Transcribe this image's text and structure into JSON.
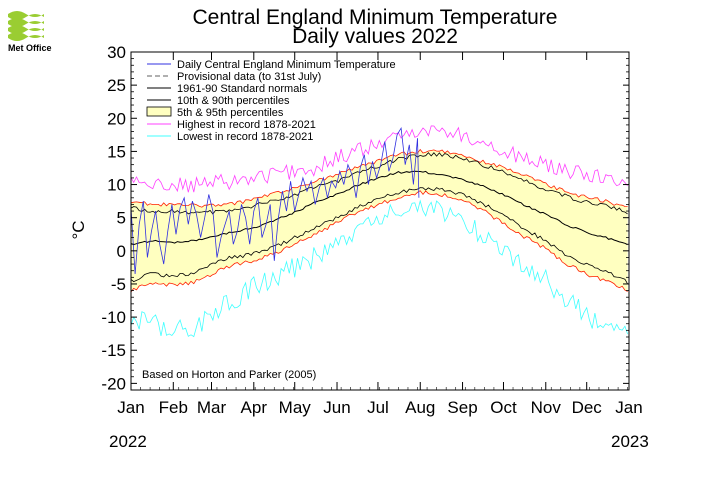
{
  "header": {
    "logo_text": "Met Office",
    "title_line1": "Central England Minimum Temperature",
    "title_line2": "Daily values 2022"
  },
  "axis": {
    "ylabel": "°C",
    "year_start": "2022",
    "year_end": "2023"
  },
  "legend": [
    {
      "label": "Daily Central England Minimum Temperature",
      "color": "#3030e0",
      "kind": "line"
    },
    {
      "label": "Provisional data (to 31st July)",
      "color": "#606060",
      "kind": "dash"
    },
    {
      "label": "1961-90 Standard normals",
      "color": "#000000",
      "kind": "line"
    },
    {
      "label": "10th & 90th percentiles",
      "color": "#000000",
      "kind": "line"
    },
    {
      "label": "5th & 95th percentiles",
      "color": "#ffffc0",
      "kind": "box"
    },
    {
      "label": "Highest in record 1878-2021",
      "color": "#ff40ff",
      "kind": "line"
    },
    {
      "label": "Lowest in record 1878-2021",
      "color": "#40ffff",
      "kind": "line"
    }
  ],
  "note": "Based on Horton and Parker (2005)",
  "colors": {
    "daily": "#3030e0",
    "normal": "#000000",
    "p10_90": "#000000",
    "p5_95": "#ff2000",
    "band_fill": "#ffffc0",
    "highest": "#ff40ff",
    "lowest": "#40ffff"
  },
  "chart_data": {
    "type": "line",
    "title": "Central England Minimum Temperature",
    "subtitle": "Daily values 2022",
    "xlabel": "",
    "ylabel": "°C",
    "x_ticks": [
      "Jan",
      "Feb",
      "Mar",
      "Apr",
      "May",
      "Jun",
      "Jul",
      "Aug",
      "Sep",
      "Oct",
      "Nov",
      "Dec",
      "Jan"
    ],
    "y_ticks": [
      30,
      25,
      20,
      15,
      10,
      5,
      0,
      -5,
      -10,
      -15,
      -20
    ],
    "ylim": [
      -21,
      30
    ],
    "xlim": [
      1,
      366
    ],
    "grid": false,
    "legend_position": "top-left",
    "normals_days": [
      1,
      15,
      32,
      46,
      60,
      74,
      91,
      105,
      121,
      135,
      152,
      166,
      182,
      196,
      213,
      227,
      244,
      258,
      274,
      288,
      305,
      319,
      335,
      349,
      366
    ],
    "series": [
      {
        "name": "Highest in record 1878-2021",
        "values": [
          10.5,
          10.0,
          10.0,
          9.8,
          10.2,
          10.5,
          11.0,
          11.5,
          12.0,
          12.5,
          14.0,
          15.0,
          16.0,
          17.0,
          18.5,
          18.0,
          17.5,
          16.5,
          15.0,
          14.0,
          13.0,
          12.0,
          11.5,
          11.0,
          10.0
        ]
      },
      {
        "name": "95th percentile",
        "values": [
          7.5,
          7.0,
          7.0,
          6.8,
          6.8,
          7.0,
          7.8,
          8.5,
          9.5,
          10.5,
          11.5,
          12.5,
          13.5,
          14.5,
          15.0,
          15.0,
          14.5,
          13.5,
          12.5,
          11.5,
          10.0,
          9.0,
          8.0,
          7.5,
          6.5
        ]
      },
      {
        "name": "90th percentile",
        "values": [
          6.5,
          6.0,
          6.0,
          5.8,
          5.8,
          6.0,
          6.8,
          7.5,
          8.5,
          9.5,
          10.5,
          11.8,
          12.8,
          13.8,
          14.5,
          14.5,
          14.0,
          13.0,
          12.0,
          10.8,
          9.3,
          8.3,
          7.3,
          6.8,
          5.8
        ]
      },
      {
        "name": "1961-90 Standard normals",
        "values": [
          1.0,
          1.5,
          1.3,
          1.5,
          2.0,
          2.8,
          3.5,
          4.5,
          5.8,
          7.2,
          8.5,
          9.8,
          11.0,
          11.8,
          12.0,
          11.5,
          10.8,
          9.8,
          8.5,
          7.0,
          5.5,
          4.0,
          2.8,
          2.0,
          1.0
        ]
      },
      {
        "name": "10th percentile",
        "values": [
          -4.5,
          -3.5,
          -3.8,
          -3.5,
          -2.0,
          -1.0,
          -0.5,
          0.5,
          2.0,
          3.5,
          5.0,
          6.5,
          7.8,
          8.8,
          9.5,
          9.3,
          8.5,
          7.2,
          5.5,
          3.5,
          1.5,
          -0.5,
          -2.0,
          -3.0,
          -4.8
        ]
      },
      {
        "name": "5th percentile",
        "values": [
          -6.0,
          -5.0,
          -5.2,
          -4.8,
          -3.5,
          -2.3,
          -1.5,
          -0.5,
          1.0,
          2.5,
          4.2,
          5.8,
          7.0,
          8.0,
          8.8,
          8.6,
          7.6,
          6.2,
          4.2,
          2.3,
          0.3,
          -1.8,
          -3.5,
          -4.5,
          -6.0
        ]
      },
      {
        "name": "Lowest in record 1878-2021",
        "values": [
          -10.0,
          -11.0,
          -12.0,
          -11.5,
          -10.0,
          -7.5,
          -5.5,
          -4.0,
          -2.5,
          -1.0,
          1.0,
          3.0,
          4.5,
          6.0,
          6.8,
          6.5,
          4.5,
          2.5,
          0.5,
          -2.0,
          -4.5,
          -7.0,
          -10.0,
          -12.0,
          -11.0
        ]
      }
    ],
    "daily_days": [
      1,
      4,
      7,
      10,
      13,
      16,
      19,
      22,
      25,
      28,
      31,
      34,
      37,
      40,
      43,
      46,
      49,
      52,
      55,
      58,
      61,
      64,
      67,
      70,
      73,
      76,
      79,
      82,
      85,
      88,
      91,
      94,
      97,
      100,
      103,
      106,
      109,
      112,
      115,
      118,
      121,
      124,
      127,
      130,
      133,
      136,
      139,
      142,
      145,
      148,
      151,
      154,
      157,
      160,
      163,
      166,
      169,
      172,
      175,
      178,
      181,
      184,
      187,
      190,
      193,
      196,
      199,
      202,
      205,
      208,
      211,
      212
    ],
    "daily_values": [
      6.5,
      -3.5,
      4.0,
      7.5,
      -1.0,
      3.0,
      6.0,
      1.0,
      -2.0,
      3.0,
      7.0,
      2.5,
      6.5,
      8.0,
      4.0,
      7.5,
      5.5,
      2.0,
      5.0,
      8.5,
      6.0,
      -1.0,
      2.0,
      4.0,
      6.0,
      1.0,
      3.0,
      7.0,
      5.0,
      1.0,
      6.0,
      8.0,
      2.0,
      4.0,
      7.0,
      -1.5,
      5.0,
      9.0,
      6.0,
      10.5,
      6.0,
      8.5,
      11.0,
      9.0,
      10.5,
      7.0,
      9.5,
      11.0,
      8.0,
      10.5,
      9.5,
      12.0,
      10.0,
      13.0,
      11.5,
      8.0,
      12.5,
      14.5,
      10.0,
      13.5,
      11.0,
      13.0,
      16.5,
      12.0,
      14.0,
      17.5,
      18.5,
      13.0,
      16.0,
      10.0,
      17.0,
      8.0
    ]
  }
}
